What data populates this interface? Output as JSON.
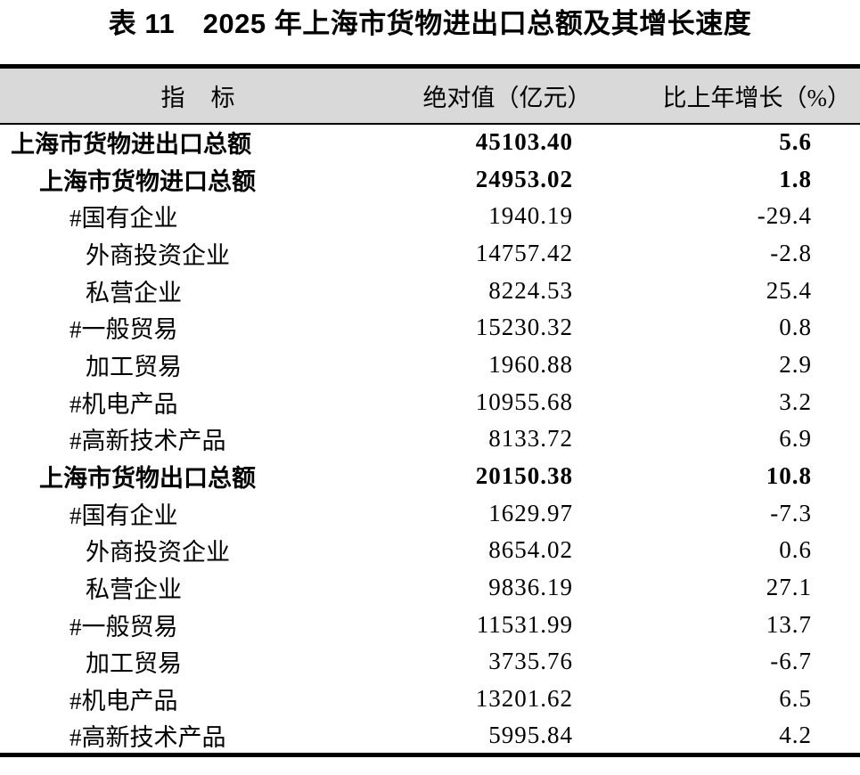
{
  "title": "表 11　2025 年上海市货物进出口总额及其增长速度",
  "table": {
    "columns": {
      "indicator": "指　标",
      "absolute_value": "绝对值（亿元）",
      "growth": "比上年增长（%）"
    },
    "rows": [
      {
        "indicator": "上海市货物进出口总额",
        "absolute_value": "45103.40",
        "growth": "5.6",
        "bold": true,
        "indent": 0
      },
      {
        "indicator": "上海市货物进口总额",
        "absolute_value": "24953.02",
        "growth": "1.8",
        "bold": true,
        "indent": 1
      },
      {
        "indicator": "#国有企业",
        "absolute_value": "1940.19",
        "growth": "-29.4",
        "bold": false,
        "indent": 2
      },
      {
        "indicator": "外商投资企业",
        "absolute_value": "14757.42",
        "growth": "-2.8",
        "bold": false,
        "indent": 3
      },
      {
        "indicator": "私营企业",
        "absolute_value": "8224.53",
        "growth": "25.4",
        "bold": false,
        "indent": 3
      },
      {
        "indicator": "#一般贸易",
        "absolute_value": "15230.32",
        "growth": "0.8",
        "bold": false,
        "indent": 2
      },
      {
        "indicator": "加工贸易",
        "absolute_value": "1960.88",
        "growth": "2.9",
        "bold": false,
        "indent": 3
      },
      {
        "indicator": "#机电产品",
        "absolute_value": "10955.68",
        "growth": "3.2",
        "bold": false,
        "indent": 2
      },
      {
        "indicator": "#高新技术产品",
        "absolute_value": "8133.72",
        "growth": "6.9",
        "bold": false,
        "indent": 2
      },
      {
        "indicator": "上海市货物出口总额",
        "absolute_value": "20150.38",
        "growth": "10.8",
        "bold": true,
        "indent": 1
      },
      {
        "indicator": "#国有企业",
        "absolute_value": "1629.97",
        "growth": "-7.3",
        "bold": false,
        "indent": 2
      },
      {
        "indicator": "外商投资企业",
        "absolute_value": "8654.02",
        "growth": "0.6",
        "bold": false,
        "indent": 3
      },
      {
        "indicator": "私营企业",
        "absolute_value": "9836.19",
        "growth": "27.1",
        "bold": false,
        "indent": 3
      },
      {
        "indicator": "#一般贸易",
        "absolute_value": "11531.99",
        "growth": "13.7",
        "bold": false,
        "indent": 2
      },
      {
        "indicator": "加工贸易",
        "absolute_value": "3735.76",
        "growth": "-6.7",
        "bold": false,
        "indent": 3
      },
      {
        "indicator": "#机电产品",
        "absolute_value": "13201.62",
        "growth": "6.5",
        "bold": false,
        "indent": 2
      },
      {
        "indicator": "#高新技术产品",
        "absolute_value": "5995.84",
        "growth": "4.2",
        "bold": false,
        "indent": 2
      }
    ]
  },
  "colors": {
    "header_background": "#d9d9d9",
    "rule": "#000000",
    "text": "#000000"
  }
}
